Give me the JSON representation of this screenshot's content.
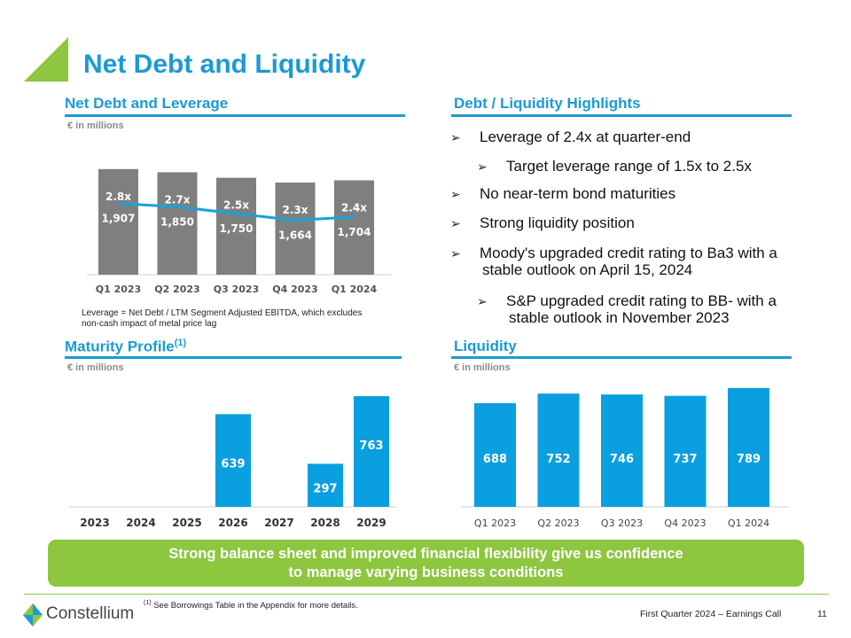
{
  "title": "Net Debt and Liquidity",
  "colors": {
    "accent_blue": "#1a9ad6",
    "bar_grey": "#7f7f7f",
    "bar_blue": "#0a9fdf",
    "line_blue": "#1aa0dc",
    "green": "#8dc63f"
  },
  "net_debt": {
    "heading": "Net Debt and Leverage",
    "units": "€ in millions",
    "note_line1": "Leverage = Net Debt / LTM Segment Adjusted EBITDA, which excludes",
    "note_line2": "non-cash impact of metal price lag"
  },
  "maturity": {
    "heading": "Maturity Profile",
    "heading_sup": "(1)",
    "units": "€ in millions"
  },
  "liquidity": {
    "heading": "Liquidity",
    "units": "€ in millions"
  },
  "highlights": {
    "heading": "Debt / Liquidity Highlights",
    "items": [
      {
        "text": "Leverage of 2.4x at quarter-end",
        "level": 0
      },
      {
        "text": "Target leverage range of 1.5x to 2.5x",
        "level": 1
      },
      {
        "text": "No near-term bond maturities",
        "level": 0
      },
      {
        "text": "Strong liquidity position",
        "level": 0
      },
      {
        "text": "Moody's upgraded credit rating to Ba3 with a",
        "text2": "stable outlook on April 15, 2024",
        "level": 0
      },
      {
        "text": "S&P upgraded credit rating to BB- with a",
        "text2": "stable outlook in November 2023",
        "level": 1
      }
    ]
  },
  "banner": {
    "line1": "Strong balance sheet and improved financial flexibility give us confidence",
    "line2": "to manage varying business conditions"
  },
  "footer": {
    "footnote_sup": "(1)",
    "footnote": "See Borrowings Table in the Appendix for more details.",
    "logo_text": "Constellium",
    "event": "First Quarter 2024 – Earnings Call",
    "page": "11"
  },
  "chart_data": [
    {
      "id": "net_debt_leverage",
      "type": "bar",
      "categories": [
        "Q1 2023",
        "Q2 2023",
        "Q3 2023",
        "Q4 2023",
        "Q1 2024"
      ],
      "series": [
        {
          "values": [
            1907,
            1850,
            1750,
            1664,
            1704
          ]
        },
        {
          "type": "line",
          "values": [
            2.8,
            2.7,
            2.5,
            2.3,
            2.4
          ],
          "labels": [
            "2.8x",
            "2.7x",
            "2.5x",
            "2.3x",
            "2.4x"
          ]
        }
      ],
      "ylim": [
        0,
        2000
      ]
    },
    {
      "id": "maturity_profile",
      "type": "bar",
      "categories": [
        "2023",
        "2024",
        "2025",
        "2026",
        "2027",
        "2028",
        "2029"
      ],
      "values": [
        0,
        0,
        0,
        639,
        0,
        297,
        763
      ],
      "ylim": [
        0,
        800
      ]
    },
    {
      "id": "liquidity",
      "type": "bar",
      "categories": [
        "Q1 2023",
        "Q2 2023",
        "Q3 2023",
        "Q4 2023",
        "Q1 2024"
      ],
      "values": [
        688,
        752,
        746,
        737,
        789
      ],
      "ylim": [
        0,
        800
      ]
    }
  ]
}
